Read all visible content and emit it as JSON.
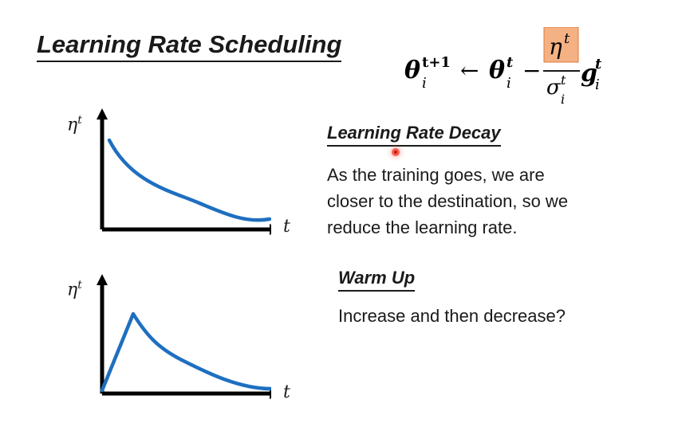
{
  "slide": {
    "title": "Learning Rate Scheduling",
    "formula": {
      "theta": "θ",
      "sup_next": "t+1",
      "sub_i": "i",
      "arrow": "←",
      "sup_t": "t",
      "minus": "−",
      "eta": "η",
      "sigma": "σ",
      "g": "g",
      "highlight_color": "#f4b183"
    },
    "decay": {
      "heading": "Learning Rate Decay",
      "lines": [
        "As the training goes, we are",
        "closer to the destination, so we",
        "reduce the learning rate."
      ]
    },
    "warmup": {
      "heading": "Warm Up",
      "text": "Increase and then decrease?"
    },
    "graph_labels": {
      "y_eta": "η",
      "y_sup": "t",
      "x": "t"
    },
    "curve_color": "#1f6fc0"
  }
}
